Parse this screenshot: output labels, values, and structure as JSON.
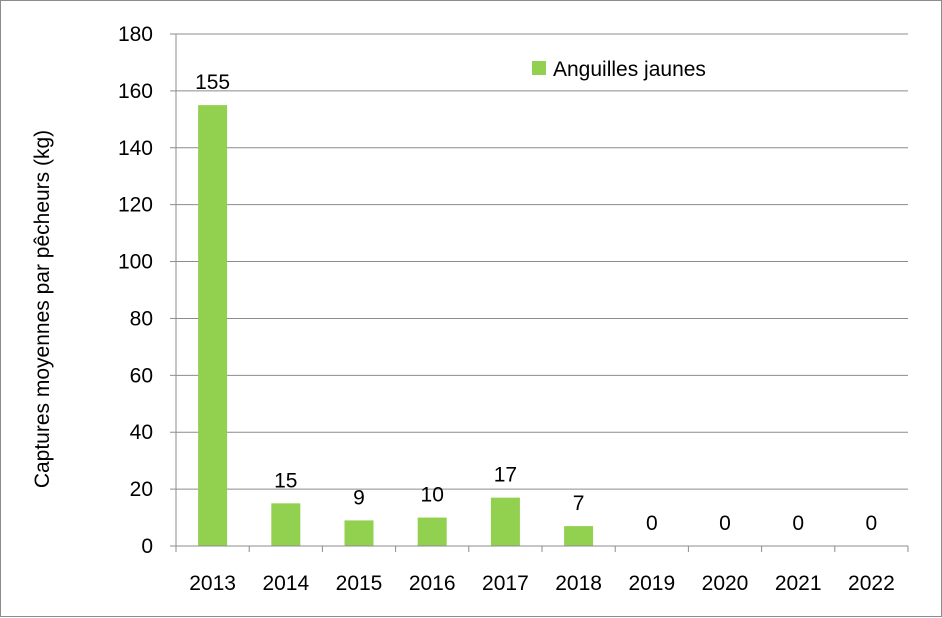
{
  "chart_data": {
    "type": "bar",
    "title": "",
    "xlabel": "",
    "ylabel": "Captures  moyennes par pêcheurs (kg)",
    "categories": [
      "2013",
      "2014",
      "2015",
      "2016",
      "2017",
      "2018",
      "2019",
      "2020",
      "2021",
      "2022"
    ],
    "series": [
      {
        "name": "Anguilles jaunes",
        "values": [
          155,
          15,
          9,
          10,
          17,
          7,
          0,
          0,
          0,
          0
        ],
        "labels": [
          "155",
          "15",
          "9",
          "10",
          "17",
          "7",
          "0",
          "0",
          "0",
          "0"
        ],
        "color": "#92d050"
      }
    ],
    "ylim": [
      0,
      180
    ],
    "yticks": [
      "0",
      "20",
      "40",
      "60",
      "80",
      "100",
      "120",
      "140",
      "160",
      "180"
    ],
    "grid": true,
    "legend_position": "top-right"
  }
}
